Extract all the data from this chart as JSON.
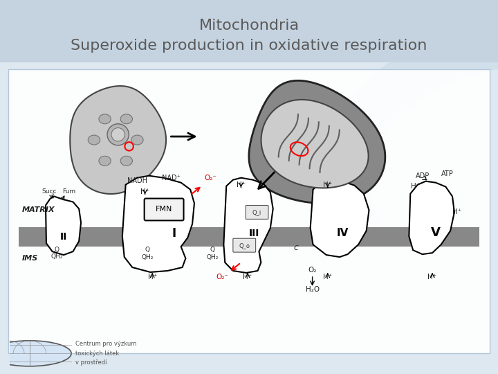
{
  "title_line1": "Mitochondria",
  "title_line2": "Superoxide production in oxidative respiration",
  "title_color": "#5a5a5a",
  "title_fontsize": 16,
  "bg_color": "#dde8f0",
  "header_color": "#c8d5e2",
  "content_bg": "#f2f6fa",
  "logo_text_line1": "Centrum pro výzkum",
  "logo_text_line2": "toxických látek",
  "logo_text_line3": "v prostředí",
  "logo_text_color": "#555555",
  "logo_text_fontsize": 6,
  "figsize": [
    7.2,
    5.4
  ],
  "dpi": 100
}
